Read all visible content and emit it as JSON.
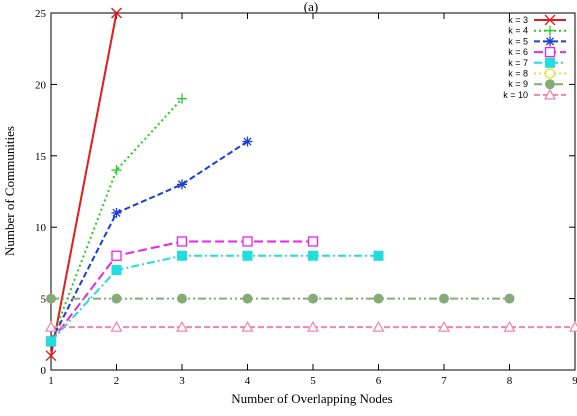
{
  "chart_data": {
    "type": "line",
    "title": "(a)",
    "xlabel": "Number of Overlapping Nodes",
    "ylabel": "Number of Communities",
    "xlim": [
      1,
      9
    ],
    "ylim": [
      0,
      25
    ],
    "x_ticks": [
      1,
      2,
      3,
      4,
      5,
      6,
      7,
      8,
      9
    ],
    "y_ticks": [
      0,
      5,
      10,
      15,
      20,
      25
    ],
    "grid": false,
    "legend_position": "top-right",
    "series": [
      {
        "name": "k = 3",
        "color": "#e41a1c",
        "dash": "solid",
        "marker": "x",
        "x": [
          1,
          2
        ],
        "y": [
          1,
          25
        ]
      },
      {
        "name": "k = 4",
        "color": "#22cc22",
        "dash": "dotted",
        "marker": "plus",
        "x": [
          1,
          2,
          3
        ],
        "y": [
          2,
          14,
          19
        ]
      },
      {
        "name": "k = 5",
        "color": "#1a3fd6",
        "dash": "dashed",
        "marker": "asterisk",
        "x": [
          1,
          2,
          3,
          4
        ],
        "y": [
          2,
          11,
          13,
          16
        ]
      },
      {
        "name": "k = 6",
        "color": "#ee22ee",
        "dash": "longdash",
        "marker": "open-square",
        "x": [
          1,
          2,
          3,
          4,
          5
        ],
        "y": [
          2,
          8,
          9,
          9,
          9
        ]
      },
      {
        "name": "k = 7",
        "color": "#22dddd",
        "dash": "dashdot",
        "marker": "filled-square",
        "x": [
          1,
          2,
          3,
          4,
          5,
          6
        ],
        "y": [
          2,
          7,
          8,
          8,
          8,
          8
        ]
      },
      {
        "name": "k = 8",
        "color": "#eedd22",
        "dash": "dotted",
        "marker": "open-circle",
        "x": [],
        "y": []
      },
      {
        "name": "k = 9",
        "color": "#88aa77",
        "dash": "dashdotdot",
        "marker": "filled-circle",
        "x": [
          1,
          2,
          3,
          4,
          5,
          6,
          7,
          8
        ],
        "y": [
          5,
          5,
          5,
          5,
          5,
          5,
          5,
          5
        ]
      },
      {
        "name": "k = 10",
        "color": "#ee88aa",
        "dash": "dashed",
        "marker": "open-triangle",
        "x": [
          1,
          2,
          3,
          4,
          5,
          6,
          7,
          8,
          9
        ],
        "y": [
          3,
          3,
          3,
          3,
          3,
          3,
          3,
          3,
          3
        ]
      }
    ]
  }
}
